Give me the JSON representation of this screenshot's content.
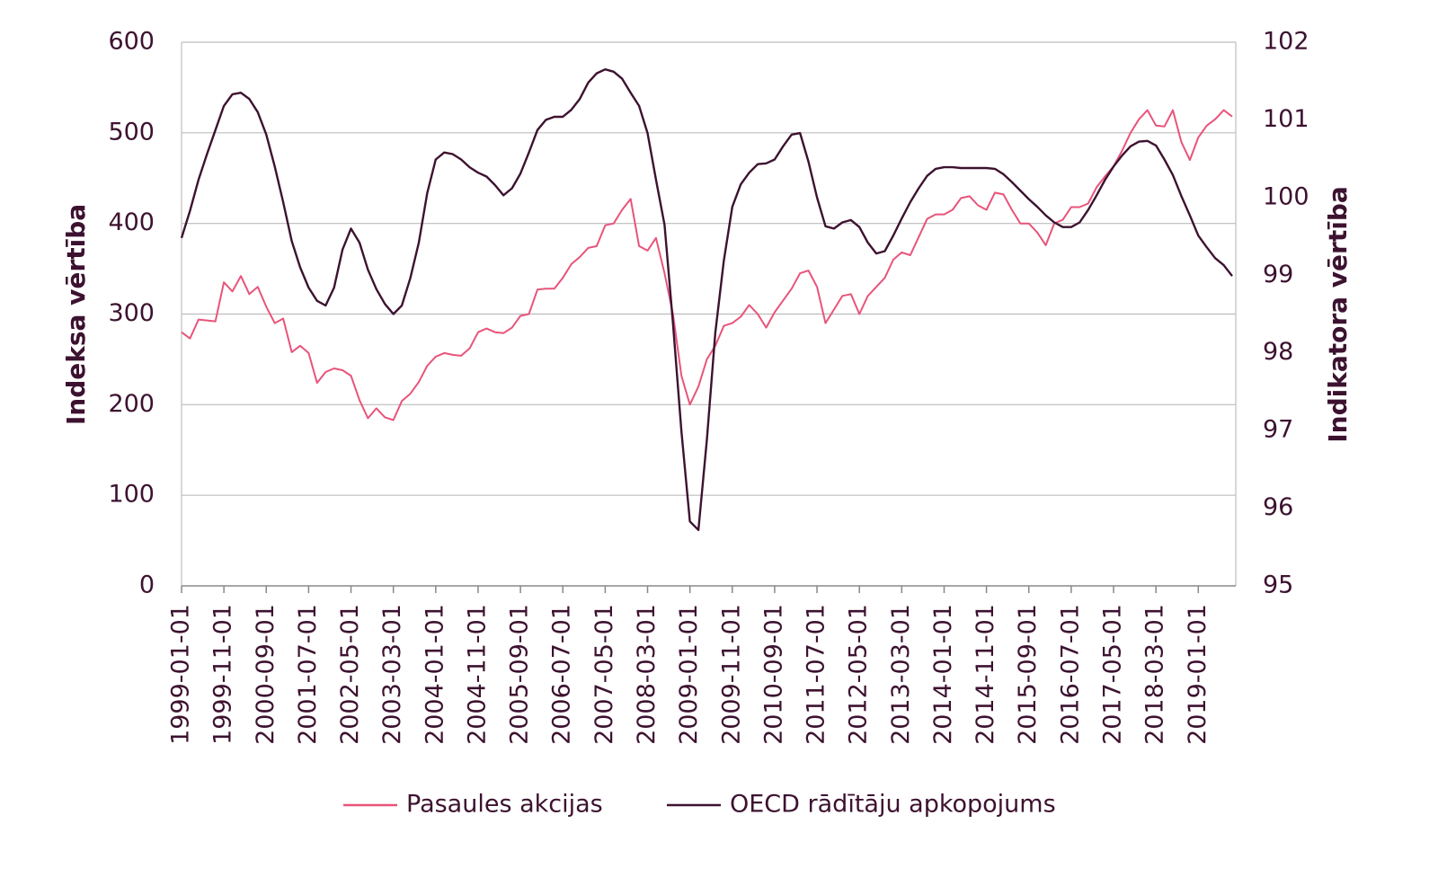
{
  "chart_data": {
    "type": "line",
    "y_label": "Indeksa vērtība",
    "y2_label": "Indikatora vērtība",
    "categories": [
      "1999-01-01",
      null,
      null,
      null,
      null,
      "1999-11-01",
      null,
      null,
      null,
      null,
      "2000-09-01",
      null,
      null,
      null,
      null,
      "2001-07-01",
      null,
      null,
      null,
      null,
      "2002-05-01",
      null,
      null,
      null,
      null,
      "2003-03-01",
      null,
      null,
      null,
      null,
      "2004-01-01",
      null,
      null,
      null,
      null,
      "2004-11-01",
      null,
      null,
      null,
      null,
      "2005-09-01",
      null,
      null,
      null,
      null,
      "2006-07-01",
      null,
      null,
      null,
      null,
      "2007-05-01",
      null,
      null,
      null,
      null,
      "2008-03-01",
      null,
      null,
      null,
      null,
      "2009-01-01",
      null,
      null,
      null,
      null,
      "2009-11-01",
      null,
      null,
      null,
      null,
      "2010-09-01",
      null,
      null,
      null,
      null,
      "2011-07-01",
      null,
      null,
      null,
      null,
      "2012-05-01",
      null,
      null,
      null,
      null,
      "2013-03-01",
      null,
      null,
      null,
      null,
      "2014-01-01",
      null,
      null,
      null,
      null,
      "2014-11-01",
      null,
      null,
      null,
      null,
      "2015-09-01",
      null,
      null,
      null,
      null,
      "2016-07-01",
      null,
      null,
      null,
      null,
      "2017-05-01",
      null,
      null,
      null,
      null,
      "2018-03-01",
      null,
      null,
      null,
      null,
      "2019-01-01",
      null,
      null,
      null,
      null
    ],
    "series": [
      {
        "name": "Pasaules akcijas",
        "color": "#e8547a",
        "values": [
          280,
          273,
          294,
          293,
          292,
          335,
          325,
          342,
          322,
          330,
          308,
          290,
          295,
          258,
          265,
          257,
          224,
          236,
          240,
          238,
          232,
          205,
          185,
          196,
          186,
          183,
          204,
          212,
          225,
          243,
          253,
          257,
          255,
          254,
          262,
          280,
          284,
          280,
          279,
          285,
          298,
          300,
          327,
          328,
          328,
          340,
          355,
          363,
          373,
          375,
          398,
          400,
          415,
          427,
          375,
          370,
          384,
          345,
          300,
          232,
          200,
          220,
          250,
          265,
          287,
          290,
          297,
          310,
          300,
          285,
          302,
          315,
          328,
          345,
          348,
          330,
          290,
          305,
          320,
          322,
          300,
          320,
          330,
          340,
          360,
          368,
          365,
          385,
          405,
          410,
          410,
          415,
          428,
          430,
          420,
          415,
          434,
          432,
          415,
          400,
          400,
          390,
          376,
          400,
          404,
          418,
          418,
          422,
          440,
          452,
          463,
          480,
          500,
          515,
          525,
          508,
          507,
          525,
          490,
          470,
          495,
          508,
          515,
          525,
          518
        ]
      },
      {
        "name": "OECD rādītāju apkopojums",
        "color": "#3d1230",
        "axis": "y2",
        "values": [
          99.48,
          99.83,
          100.23,
          100.56,
          100.87,
          101.18,
          101.33,
          101.35,
          101.27,
          101.1,
          100.81,
          100.4,
          99.94,
          99.44,
          99.1,
          98.84,
          98.67,
          98.61,
          98.84,
          99.33,
          99.6,
          99.42,
          99.07,
          98.82,
          98.63,
          98.5,
          98.61,
          98.96,
          99.42,
          100.06,
          100.49,
          100.58,
          100.56,
          100.49,
          100.39,
          100.32,
          100.27,
          100.16,
          100.03,
          100.12,
          100.31,
          100.58,
          100.87,
          101.0,
          101.04,
          101.04,
          101.13,
          101.27,
          101.48,
          101.6,
          101.65,
          101.62,
          101.53,
          101.35,
          101.18,
          100.83,
          100.23,
          99.65,
          98.38,
          96.99,
          95.83,
          95.72,
          96.88,
          98.26,
          99.19,
          99.88,
          100.17,
          100.32,
          100.43,
          100.44,
          100.49,
          100.66,
          100.81,
          100.83,
          100.46,
          100.0,
          99.63,
          99.6,
          99.68,
          99.71,
          99.62,
          99.42,
          99.28,
          99.31,
          99.51,
          99.73,
          99.94,
          100.12,
          100.28,
          100.37,
          100.39,
          100.39,
          100.38,
          100.38,
          100.38,
          100.38,
          100.37,
          100.3,
          100.2,
          100.09,
          99.98,
          99.88,
          99.77,
          99.68,
          99.62,
          99.62,
          99.68,
          99.84,
          100.03,
          100.23,
          100.4,
          100.54,
          100.66,
          100.72,
          100.73,
          100.67,
          100.49,
          100.29,
          100.02,
          99.77,
          99.51,
          99.36,
          99.22,
          99.13,
          98.99
        ]
      }
    ],
    "ylim": [
      0,
      600
    ],
    "yticks": [
      0,
      100,
      200,
      300,
      400,
      500,
      600
    ],
    "y2lim": [
      95,
      102
    ],
    "y2ticks": [
      95,
      96,
      97,
      98,
      99,
      100,
      101,
      102
    ],
    "grid": true,
    "legend": "bottom"
  }
}
